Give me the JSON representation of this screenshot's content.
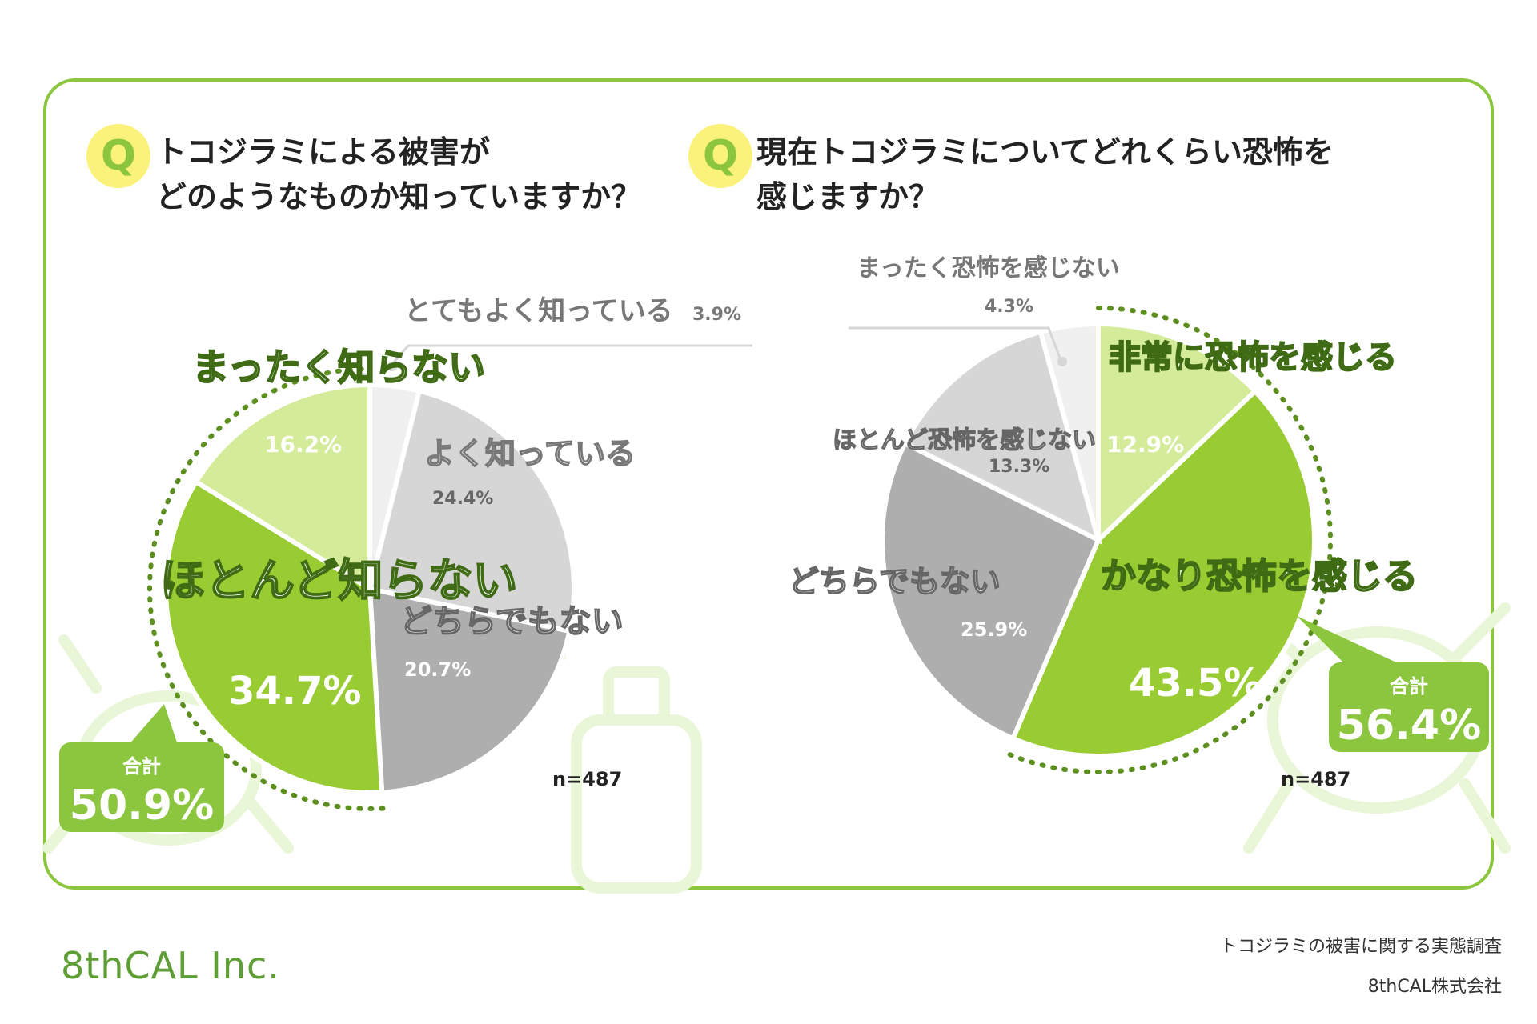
{
  "questions": {
    "q1": "トコジラミによる被害が\nどのようなものか知っていますか？",
    "q2": "現在トコジラミについてどれくらい恐怖を\n感じますか？",
    "badge": "Q"
  },
  "totals": {
    "left": {
      "label": "合計",
      "value": "50.9%"
    },
    "right": {
      "label": "合計",
      "value": "56.4%"
    }
  },
  "n_label": "n=487",
  "footer": {
    "survey": "トコジラミの被害に関する実態調査",
    "company": "8thCAL株式会社",
    "logo": "8thCAL Inc."
  },
  "chart_data": [
    {
      "type": "pie",
      "title": "トコジラミによる被害がどのようなものか知っていますか？",
      "labels": [
        "とてもよく知っている",
        "よく知っている",
        "どちらでもない",
        "ほとんど知らない",
        "まったく知らない"
      ],
      "values": [
        3.9,
        24.4,
        20.7,
        34.7,
        16.2
      ],
      "value_labels": [
        "3.9%",
        "24.4%",
        "20.7%",
        "34.7%",
        "16.2%"
      ],
      "colors": [
        "#f0f0f0",
        "#d6d6d6",
        "#aeaeae",
        "#99cc33",
        "#d4eb9a"
      ],
      "n": 487
    },
    {
      "type": "pie",
      "title": "現在トコジラミについてどれくらい恐怖を感じますか？",
      "labels": [
        "非常に恐怖を感じる",
        "かなり恐怖を感じる",
        "どちらでもない",
        "ほとんど恐怖を感じない",
        "まったく恐怖を感じない"
      ],
      "values": [
        12.9,
        43.5,
        25.9,
        13.3,
        4.3
      ],
      "value_labels": [
        "12.9%",
        "43.5%",
        "25.9%",
        "13.3%",
        "4.3%"
      ],
      "colors": [
        "#d4eb9a",
        "#99cc33",
        "#aeaeae",
        "#d6d6d6",
        "#f0f0f0"
      ],
      "n": 487
    }
  ]
}
